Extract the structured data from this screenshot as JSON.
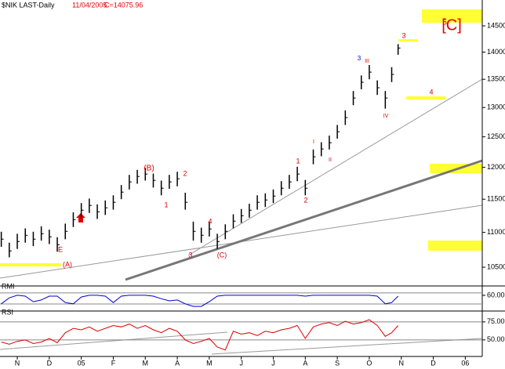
{
  "chart_data": [
    {
      "type": "ohlc",
      "title": "$NIK LAST-Daily",
      "date_label": "11/04/2005",
      "last_label": "C=14075.96",
      "log": true,
      "ylim": [
        10240,
        15010
      ],
      "yticks": [
        10500,
        11000,
        11500,
        12000,
        12500,
        13000,
        13500,
        14000,
        14500
      ],
      "xlim": [
        -0.54,
        14.53
      ],
      "color": "#000000",
      "x": [
        -0.5,
        -0.25,
        0,
        0.25,
        0.5,
        0.75,
        1,
        1.25,
        1.5,
        1.75,
        2,
        2.25,
        2.5,
        2.75,
        3,
        3.25,
        3.5,
        3.75,
        4,
        4.25,
        4.5,
        4.75,
        5,
        5.25,
        5.5,
        5.75,
        6,
        6.25,
        6.5,
        6.75,
        7,
        7.25,
        7.5,
        7.75,
        8,
        8.25,
        8.5,
        8.75,
        9,
        9.25,
        9.5,
        9.75,
        10,
        10.25,
        10.5,
        10.75,
        11,
        11.25,
        11.5,
        11.7,
        11.9
      ],
      "high": [
        11010,
        10850,
        10980,
        11060,
        11010,
        11090,
        11040,
        10930,
        11130,
        11300,
        11440,
        11510,
        11420,
        11480,
        11560,
        11720,
        11880,
        11960,
        11990,
        11900,
        11790,
        11880,
        11930,
        11600,
        11160,
        11070,
        11160,
        10980,
        11120,
        11270,
        11350,
        11430,
        11560,
        11590,
        11650,
        11780,
        11880,
        12010,
        11800,
        12290,
        12410,
        12520,
        12700,
        12950,
        13290,
        13570,
        13760,
        13480,
        13290,
        13720,
        14150
      ],
      "low": [
        10790,
        10640,
        10760,
        10850,
        10800,
        10880,
        10830,
        10720,
        10900,
        11080,
        11220,
        11290,
        11200,
        11260,
        11340,
        11500,
        11650,
        11740,
        11790,
        11680,
        11560,
        11660,
        11700,
        11340,
        10880,
        10850,
        10940,
        10760,
        10900,
        11060,
        11140,
        11220,
        11340,
        11380,
        11440,
        11560,
        11660,
        11780,
        11560,
        12050,
        12180,
        12290,
        12470,
        12700,
        13040,
        13320,
        13500,
        13220,
        12980,
        13450,
        13950
      ],
      "close": [
        10901,
        10731,
        10867,
        10958,
        10901,
        10981,
        10935,
        10821,
        11016,
        11190,
        11332,
        11404,
        11308,
        11368,
        11452,
        11609,
        11769,
        11855,
        11893,
        11793,
        11670,
        11769,
        11818,
        11452,
        11016,
        10958,
        11051,
        10867,
        11016,
        11167,
        11249,
        11332,
        11452,
        11488,
        11548,
        11670,
        11769,
        11893,
        11670,
        12170,
        12299,
        12402,
        12586,
        12826,
        13166,
        13446,
        13630,
        13348,
        13166,
        13588,
        14076
      ],
      "annotations": [
        {
          "text": "[C]",
          "color": "#e00000"
        },
        {
          "text": "5",
          "color": "#e00000"
        },
        {
          "text": "3",
          "color": "#e00000"
        },
        {
          "text": "4",
          "color": "#e00000"
        },
        {
          "text": "3",
          "color": "#0000cc"
        },
        {
          "text": "III",
          "color": "#e00000"
        },
        {
          "text": "IV",
          "color": "#e00000"
        },
        {
          "text": "I",
          "color": "#e00000"
        },
        {
          "text": "II",
          "color": "#e00000"
        },
        {
          "text": "1",
          "color": "#e00000"
        },
        {
          "text": "2",
          "color": "#e00000"
        },
        {
          "text": "(B)",
          "color": "#e00000"
        },
        {
          "text": "2",
          "color": "#e00000"
        },
        {
          "text": "1",
          "color": "#e00000"
        },
        {
          "text": "4",
          "color": "#e00000"
        },
        {
          "text": "3",
          "color": "#e00000"
        },
        {
          "text": "(C)",
          "color": "#e00000"
        },
        {
          "text": "E",
          "color": "#e00000"
        },
        {
          "text": "(A)",
          "color": "#e00000"
        }
      ]
    },
    {
      "type": "line",
      "title": "RMI",
      "color": "#0000cc",
      "ylim": [
        25,
        80
      ],
      "yticks": [
        {
          "value": 60,
          "label": "60.00"
        }
      ],
      "xlim": [
        -0.54,
        14.53
      ],
      "x": [
        -0.5,
        -0.25,
        0,
        0.25,
        0.5,
        0.75,
        1,
        1.25,
        1.5,
        1.75,
        2,
        2.25,
        2.5,
        2.75,
        3,
        3.25,
        3.5,
        3.75,
        4,
        4.25,
        4.5,
        4.75,
        5,
        5.25,
        5.5,
        5.75,
        6,
        6.25,
        6.5,
        6.75,
        7,
        7.25,
        7.5,
        7.75,
        8,
        8.25,
        8.5,
        8.75,
        9,
        9.25,
        9.5,
        9.75,
        10,
        10.25,
        10.5,
        10.75,
        11,
        11.25,
        11.5,
        11.7,
        11.9
      ],
      "values": [
        40,
        54,
        60,
        58,
        45,
        49,
        58,
        58,
        43,
        40,
        56,
        60,
        60,
        58,
        43,
        58,
        60,
        60,
        60,
        58,
        52,
        47,
        49,
        40,
        34,
        34,
        45,
        58,
        60,
        60,
        60,
        60,
        60,
        60,
        60,
        60,
        60,
        60,
        58,
        60,
        60,
        60,
        60,
        60,
        60,
        60,
        60,
        58,
        40,
        43,
        58
      ]
    },
    {
      "type": "line",
      "title": "RSI",
      "color": "#e00000",
      "ylim": [
        27,
        89
      ],
      "yticks": [
        {
          "value": 75,
          "label": "75.00"
        },
        {
          "value": 50,
          "label": "50.00"
        }
      ],
      "xlim": [
        -0.54,
        14.53
      ],
      "xticks": [
        {
          "value": 0,
          "label": "N"
        },
        {
          "value": 1,
          "label": "D"
        },
        {
          "value": 2,
          "label": "05"
        },
        {
          "value": 3,
          "label": "F"
        },
        {
          "value": 4,
          "label": "M"
        },
        {
          "value": 5,
          "label": "A"
        },
        {
          "value": 6,
          "label": "M"
        },
        {
          "value": 7,
          "label": "J"
        },
        {
          "value": 8,
          "label": "J"
        },
        {
          "value": 9,
          "label": "A"
        },
        {
          "value": 10,
          "label": "S"
        },
        {
          "value": 11,
          "label": "O"
        },
        {
          "value": 12,
          "label": "N"
        },
        {
          "value": 13,
          "label": "D"
        },
        {
          "value": 14,
          "label": "06"
        }
      ],
      "x": [
        -0.5,
        -0.25,
        0,
        0.25,
        0.5,
        0.75,
        1,
        1.25,
        1.5,
        1.75,
        2,
        2.25,
        2.5,
        2.75,
        3,
        3.25,
        3.5,
        3.75,
        4,
        4.25,
        4.5,
        4.75,
        5,
        5.25,
        5.5,
        5.75,
        6,
        6.25,
        6.5,
        6.75,
        7,
        7.25,
        7.5,
        7.75,
        8,
        8.25,
        8.5,
        8.75,
        9,
        9.25,
        9.5,
        9.75,
        10,
        10.25,
        10.5,
        10.75,
        11,
        11.25,
        11.5,
        11.7,
        11.9
      ],
      "values": [
        47,
        44,
        48,
        50,
        45,
        47,
        52,
        46,
        60,
        66,
        64,
        68,
        62,
        66,
        70,
        68,
        72,
        66,
        70,
        64,
        60,
        66,
        62,
        50,
        45,
        48,
        52,
        40,
        36,
        62,
        58,
        60,
        56,
        62,
        60,
        64,
        66,
        70,
        52,
        68,
        72,
        74,
        70,
        76,
        72,
        74,
        78,
        70,
        55,
        60,
        70
      ]
    }
  ]
}
